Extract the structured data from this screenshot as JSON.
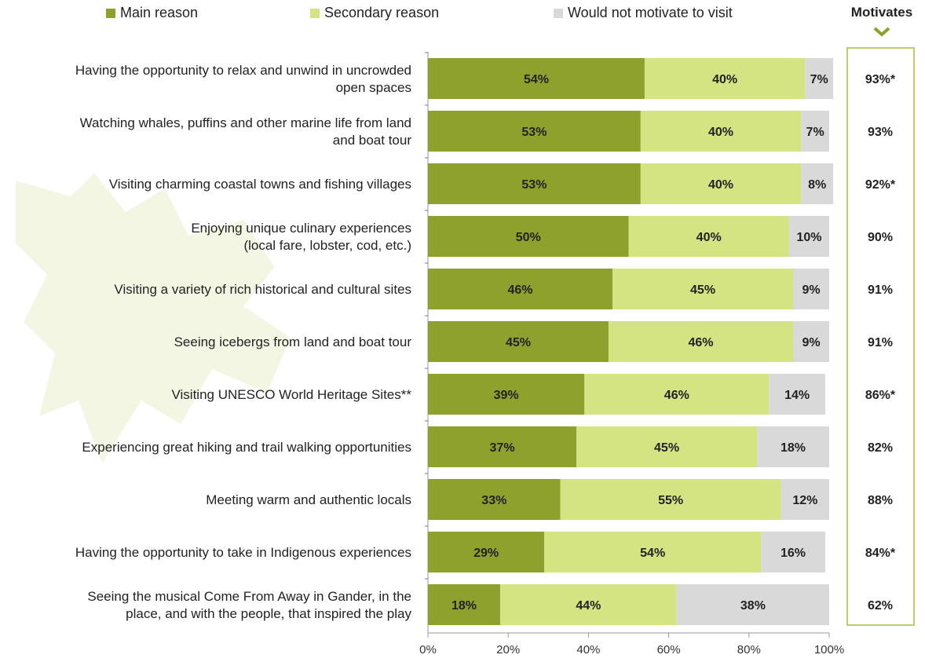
{
  "legend": {
    "main": "Main reason",
    "secondary": "Secondary reason",
    "none": "Would not motivate to visit"
  },
  "motivates_title": "Motivates",
  "colors": {
    "main": "#8ea12c",
    "secondary": "#d4e482",
    "none": "#d9d9d9",
    "box_border": "#b8cf6c"
  },
  "chart_data": {
    "type": "bar",
    "orientation": "horizontal",
    "stacked": true,
    "categories": [
      [
        "Having the opportunity to relax and unwind in uncrowded",
        "open spaces"
      ],
      [
        "Watching whales, puffins and other marine life from land",
        "and boat tour"
      ],
      [
        "Visiting charming coastal towns and fishing villages"
      ],
      [
        "Enjoying unique culinary experiences",
        "(local fare, lobster, cod, etc.)"
      ],
      [
        "Visiting a variety of rich historical and cultural sites"
      ],
      [
        "Seeing icebergs from land and boat tour"
      ],
      [
        "Visiting UNESCO World Heritage Sites**"
      ],
      [
        "Experiencing great hiking and trail walking opportunities"
      ],
      [
        "Meeting warm and authentic locals"
      ],
      [
        "Having the opportunity to take in Indigenous experiences"
      ],
      [
        "Seeing the musical Come From Away in Gander, in the",
        "place, and with the people, that inspired the play"
      ]
    ],
    "series": [
      {
        "name": "Main reason",
        "values": [
          54,
          53,
          53,
          50,
          46,
          45,
          39,
          37,
          33,
          29,
          18
        ]
      },
      {
        "name": "Secondary reason",
        "values": [
          40,
          40,
          40,
          40,
          45,
          46,
          46,
          45,
          55,
          54,
          44
        ]
      },
      {
        "name": "Would not motivate to visit",
        "values": [
          7,
          7,
          8,
          10,
          9,
          9,
          14,
          18,
          12,
          16,
          38
        ]
      }
    ],
    "motivates": [
      "93%*",
      "93%",
      "92%*",
      "90%",
      "91%",
      "91%",
      "86%*",
      "82%",
      "88%",
      "84%*",
      "62%"
    ],
    "xlim": [
      0,
      100
    ],
    "xticks": [
      "0%",
      "20%",
      "40%",
      "60%",
      "80%",
      "100%"
    ],
    "legend_position": "top"
  }
}
